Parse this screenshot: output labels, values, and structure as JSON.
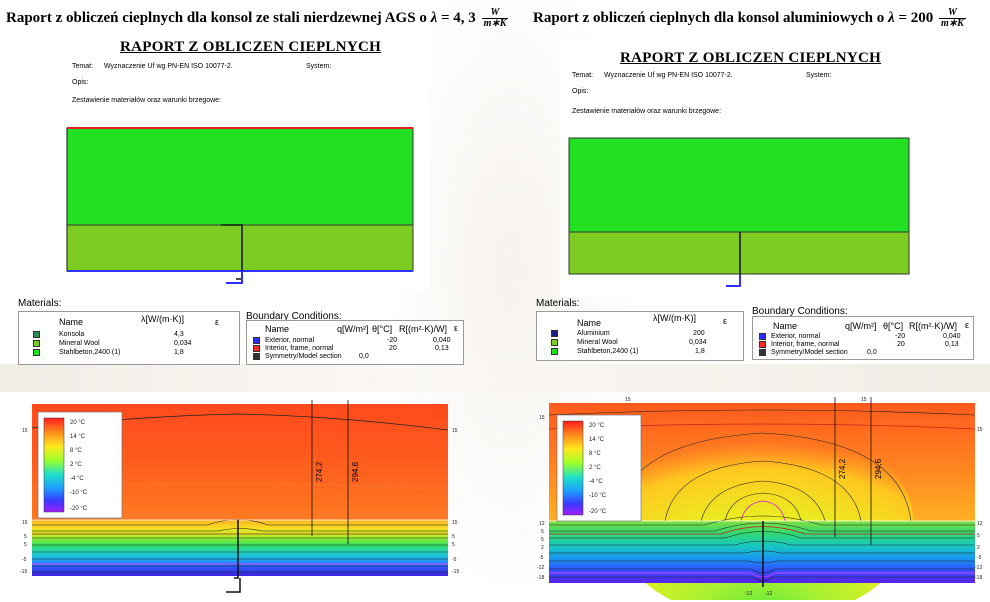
{
  "left": {
    "heading": {
      "text": "Raport z obliczeń cieplnych dla konsol ze stali nierdzewnej AGS o",
      "lambda_symbol": "λ",
      "lambda_value": "= 4, 3",
      "unit_numerator": "W",
      "unit_denominator": "m∗K"
    },
    "report": {
      "title": "RAPORT  Z OBLICZEN  CIEPLNYCH",
      "temat_label": "Temat:",
      "temat_value": "Wyznaczenie Uf wg PN-EN ISO 10077-2.",
      "system_label": "System:",
      "opis_label": "Opis:",
      "zestawienie": "Zestawienie materiałów oraz warunki brzegowe:"
    },
    "materials": {
      "label": "Materials:",
      "col_name": "Name",
      "col_lambda": "λ[W/(m·K)]",
      "col_eps": "ε",
      "items": [
        {
          "name": "Konsola",
          "value": "4,3",
          "color": "#2e8b57"
        },
        {
          "name": "Mineral Wool",
          "value": "0,034",
          "color": "#7ccc22"
        },
        {
          "name": "Stahlbeton,2400 (1)",
          "value": "1,8",
          "color": "#22e022"
        }
      ]
    },
    "boundary": {
      "label": "Boundary Conditions:",
      "col_name": "Name",
      "col_q": "q[W/m²]",
      "col_theta": "θ[°C]",
      "col_r": "R[(m²·K)/W]",
      "col_eps": "ε",
      "items": [
        {
          "name": "Exterior, normal",
          "q": "",
          "theta": "-20",
          "r": "0,040",
          "color": "#2b2bff"
        },
        {
          "name": "Interior, frame, normal",
          "q": "",
          "theta": "20",
          "r": "0,13",
          "color": "#ff2b2b"
        },
        {
          "name": "Symmetry/Model section",
          "q": "0,0",
          "theta": "",
          "r": "",
          "color": "#333333"
        }
      ]
    },
    "thermal": {
      "legend": [
        "20 °C",
        "14 °C",
        "8 °C",
        "2 °C",
        "-4 °C",
        "-10 °C",
        "-20 °C"
      ],
      "dim_a": "274,2",
      "dim_b": "294,6",
      "edge_labels_left": [
        "15",
        "15",
        "5",
        "5",
        "-5",
        "-15"
      ],
      "edge_labels_right": [
        "15",
        "15",
        "5",
        "5",
        "-5",
        "-15"
      ]
    }
  },
  "right": {
    "heading": {
      "text": "Raport z obliczeń cieplnych dla konsol aluminiowych o",
      "lambda_symbol": "λ",
      "lambda_value": "= 200",
      "unit_numerator": "W",
      "unit_denominator": "m∗K"
    },
    "report": {
      "title": "RAPORT  Z OBLICZEN  CIEPLNYCH",
      "temat_label": "Temat:",
      "temat_value": "Wyznaczenie Uf wg PN-EN ISO 10077-2.",
      "system_label": "System:",
      "opis_label": "Opis:",
      "zestawienie": "Zestawienie materiałów oraz warunki brzegowe:"
    },
    "materials": {
      "label": "Materials:",
      "col_name": "Name",
      "col_lambda": "λ[W/(m·K)]",
      "col_eps": "ε",
      "items": [
        {
          "name": "Aluminium",
          "value": "200",
          "color": "#1a1a8c"
        },
        {
          "name": "Mineral Wool",
          "value": "0,034",
          "color": "#7ccc22"
        },
        {
          "name": "Stahlbeton,2400 (1)",
          "value": "1,8",
          "color": "#22e022"
        }
      ]
    },
    "boundary": {
      "label": "Boundary Conditions:",
      "col_name": "Name",
      "col_q": "q[W/m²]",
      "col_theta": "θ[°C]",
      "col_r": "R[(m²·K)/W]",
      "col_eps": "ε",
      "items": [
        {
          "name": "Exterior, normal",
          "q": "",
          "theta": "-20",
          "r": "0,040",
          "color": "#2b2bff"
        },
        {
          "name": "Interior, frame, normal",
          "q": "",
          "theta": "20",
          "r": "0,13",
          "color": "#ff2b2b"
        },
        {
          "name": "Symmetry/Model section",
          "q": "0,0",
          "theta": "",
          "r": "",
          "color": "#333333"
        }
      ]
    },
    "thermal": {
      "legend": [
        "20 °C",
        "14 °C",
        "8 °C",
        "2 °C",
        "-4 °C",
        "-10 °C",
        "-20 °C"
      ],
      "dim_a": "274,2",
      "dim_b": "294,6",
      "top_labels": [
        "15",
        "15"
      ],
      "bottom_labels": [
        "-12",
        "-12"
      ],
      "edge_labels_left": [
        "15",
        "12",
        "5",
        "5",
        "2",
        "-5",
        "-12",
        "-18"
      ],
      "edge_labels_right": [
        "15",
        "12",
        "5",
        "2",
        "-5",
        "-12",
        "-18"
      ]
    }
  }
}
